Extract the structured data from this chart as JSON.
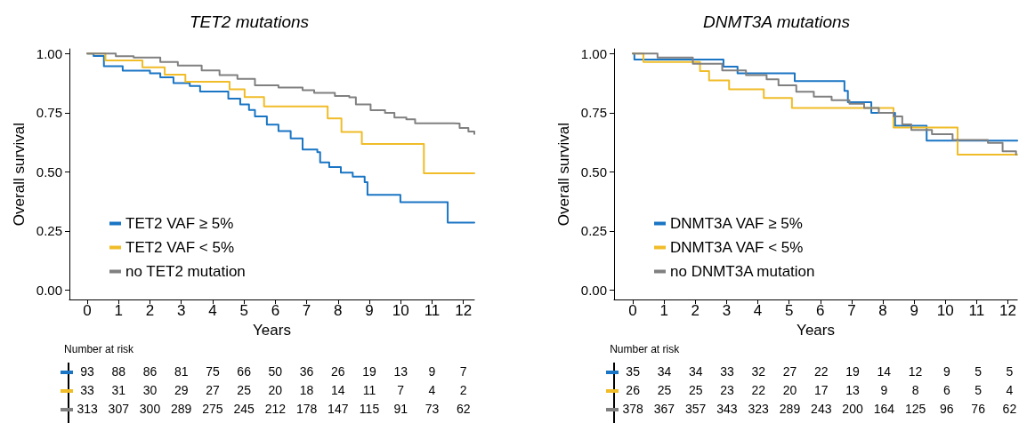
{
  "chart_data": [
    {
      "type": "step",
      "title": "TET2 mutations",
      "xlabel": "Years",
      "ylabel": "Overall survival",
      "xlim": [
        -0.57,
        12.35
      ],
      "xticks": [
        0,
        1,
        2,
        3,
        4,
        5,
        6,
        7,
        8,
        9,
        10,
        11,
        12
      ],
      "ylim": [
        -0.04,
        1.02
      ],
      "yticks": [
        {
          "value": 0,
          "label": "0.00"
        },
        {
          "value": 0.25,
          "label": "0.25"
        },
        {
          "value": 0.5,
          "label": "0.50"
        },
        {
          "value": 0.75,
          "label": "0.75"
        },
        {
          "value": 1,
          "label": "1.00"
        }
      ],
      "grid": false,
      "legend": "left",
      "marker": "none",
      "line_style": "solid",
      "series": [
        {
          "name": "TET2 VAF ≥ 5%",
          "color": "#1a75c4",
          "x": [
            0,
            0.2,
            0.53,
            1.13,
            2.0,
            2.33,
            2.75,
            3.27,
            3.6,
            4.5,
            4.88,
            5.16,
            5.35,
            5.73,
            6.1,
            6.49,
            6.87,
            7.34,
            7.43,
            7.72,
            8.09,
            8.47,
            8.85,
            8.94,
            9.99,
            11.5,
            12.35
          ],
          "values": [
            1.0,
            0.99,
            0.947,
            0.928,
            0.917,
            0.9,
            0.875,
            0.863,
            0.84,
            0.81,
            0.785,
            0.762,
            0.734,
            0.7,
            0.672,
            0.641,
            0.594,
            0.583,
            0.54,
            0.52,
            0.497,
            0.48,
            0.456,
            0.403,
            0.372,
            0.285,
            0.285
          ]
        },
        {
          "name": "TET2 VAF < 5%",
          "color": "#f0bc28",
          "x": [
            0,
            0.58,
            1.76,
            2.47,
            3.13,
            4.54,
            5.02,
            5.64,
            7.67,
            8.11,
            8.76,
            10.74,
            12.35
          ],
          "values": [
            1.0,
            0.971,
            0.942,
            0.911,
            0.881,
            0.849,
            0.816,
            0.777,
            0.726,
            0.669,
            0.618,
            0.494,
            0.494
          ]
        },
        {
          "name": "no TET2 mutation",
          "color": "#808080",
          "x": [
            0,
            0.91,
            1.48,
            2.33,
            2.89,
            3.65,
            4.22,
            4.79,
            5.35,
            6.1,
            6.87,
            7.24,
            7.9,
            8.36,
            8.57,
            9.04,
            9.5,
            9.8,
            10.18,
            10.46,
            11.69,
            11.88,
            12.16,
            12.35
          ],
          "values": [
            1.0,
            0.989,
            0.983,
            0.965,
            0.95,
            0.929,
            0.909,
            0.893,
            0.866,
            0.857,
            0.845,
            0.834,
            0.821,
            0.815,
            0.785,
            0.761,
            0.749,
            0.73,
            0.722,
            0.705,
            0.704,
            0.686,
            0.671,
            0.66
          ]
        }
      ],
      "annotations": [
        "Number at risk",
        "93 88 86 81 75 66 50 36 26 19 13 9 7",
        "33 31 30 29 27 25 20 18 14 11 7 4 2",
        "313 307 300 289 275 245 212 178 147 115 91 73 62"
      ]
    },
    {
      "type": "step",
      "title": "DNMT3A mutations",
      "xlabel": "Years",
      "ylabel": "Overall survival",
      "xlim": [
        -0.6,
        12.3
      ],
      "xticks": [
        0,
        1,
        2,
        3,
        4,
        5,
        6,
        7,
        8,
        9,
        10,
        11,
        12
      ],
      "ylim": [
        -0.04,
        1.02
      ],
      "yticks": [
        {
          "value": 0,
          "label": "0.00"
        },
        {
          "value": 0.25,
          "label": "0.25"
        },
        {
          "value": 0.5,
          "label": "0.50"
        },
        {
          "value": 0.75,
          "label": "0.75"
        },
        {
          "value": 1,
          "label": "1.00"
        }
      ],
      "grid": false,
      "legend": "left",
      "marker": "none",
      "line_style": "solid",
      "series": [
        {
          "name": "DNMT3A VAF ≥ 5%",
          "color": "#1a75c4",
          "x": [
            0,
            0.05,
            2.9,
            3.35,
            5.18,
            6.77,
            6.88,
            7.63,
            8.39,
            9.4,
            12.3
          ],
          "values": [
            1.0,
            0.975,
            0.945,
            0.917,
            0.884,
            0.842,
            0.795,
            0.749,
            0.695,
            0.632,
            0.632
          ]
        },
        {
          "name": "DNMT3A VAF < 5%",
          "color": "#f0bc28",
          "x": [
            0,
            0.34,
            2.15,
            2.44,
            3.08,
            4.19,
            5.09,
            8.34,
            10.39,
            12.3
          ],
          "values": [
            1.0,
            0.965,
            0.926,
            0.887,
            0.849,
            0.812,
            0.77,
            0.687,
            0.573,
            0.573
          ]
        },
        {
          "name": "no DNMT3A mutation",
          "color": "#808080",
          "x": [
            0,
            0.79,
            1.92,
            2.86,
            3.62,
            4.28,
            4.66,
            5.23,
            5.79,
            6.36,
            6.93,
            7.4,
            7.87,
            8.34,
            8.62,
            8.91,
            9.57,
            10.23,
            11.36,
            11.83,
            12.26
          ],
          "values": [
            1.0,
            0.983,
            0.957,
            0.929,
            0.909,
            0.891,
            0.866,
            0.839,
            0.818,
            0.803,
            0.788,
            0.77,
            0.749,
            0.734,
            0.701,
            0.677,
            0.659,
            0.635,
            0.623,
            0.587,
            0.573
          ]
        }
      ],
      "annotations": [
        "Number at risk",
        "35 34 34 33 32 27 22 19 14 12 9 5 5",
        "26 25 25 23 22 20 17 13 9 8 6 5 4",
        "378 367 357 343 323 289 243 200 164 125 96 76 62"
      ]
    }
  ]
}
